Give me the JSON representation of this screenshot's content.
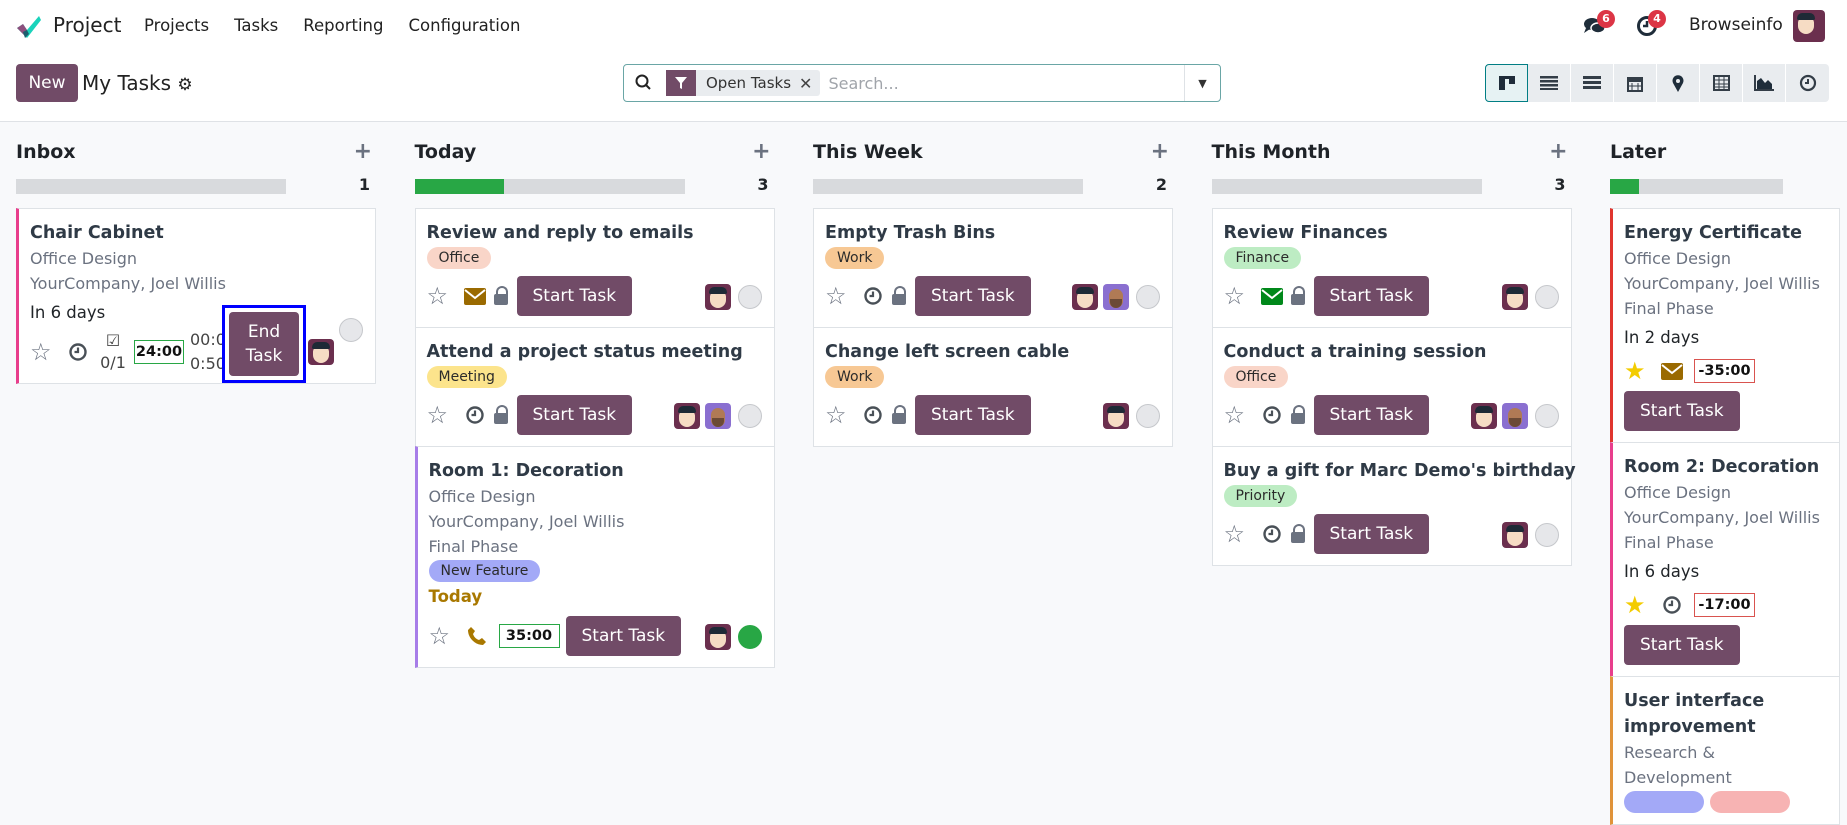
{
  "nav": {
    "app_name": "Project",
    "menu": [
      "Projects",
      "Tasks",
      "Reporting",
      "Configuration"
    ],
    "messages_count": "6",
    "activities_count": "4",
    "user_name": "Browseinfo"
  },
  "control": {
    "new_label": "New",
    "title": "My Tasks",
    "facet_label": "Open Tasks",
    "search_placeholder": "Search...",
    "views": [
      "kanban-icon",
      "list-icon",
      "gantt-icon",
      "calendar-icon",
      "map-pin-icon",
      "pivot-icon",
      "graph-icon",
      "activity-icon"
    ],
    "active_view": "kanban-icon"
  },
  "colors": {
    "brand": "#714b67",
    "progress": "#28a745"
  },
  "columns": [
    {
      "name": "Inbox",
      "count": "1",
      "progress": 0,
      "cards": [
        {
          "title": "Chair Cabinet",
          "lines": [
            "Office Design",
            "YourCompany, Joel Willis"
          ],
          "due": "In 6 days",
          "border": "#e83e8c",
          "special": "inbox",
          "checklist": "0/1",
          "timer": "24:00",
          "time_a": "00:0",
          "time_b": "0:50",
          "btn_a": "End",
          "btn_b": "Task",
          "avatars": [
            "admin"
          ],
          "status": "#e6e7ea"
        }
      ]
    },
    {
      "name": "Today",
      "count": "3",
      "progress": 0.33,
      "cards": [
        {
          "title": "Review and reply to emails",
          "tags": [
            {
              "label": "Office",
              "color": "#f9d5c8"
            }
          ],
          "activity": "envelope",
          "activity_color": "#9a6a00",
          "lock": true,
          "button": "Start Task",
          "avatars": [
            "admin"
          ],
          "status": "#e6e7ea"
        },
        {
          "title": "Attend a project status meeting",
          "tags": [
            {
              "label": "Meeting",
              "color": "#fce48c"
            }
          ],
          "activity": "clock",
          "activity_color": "#495057",
          "lock": true,
          "button": "Start Task",
          "avatars": [
            "admin",
            "marc"
          ],
          "status": "#e6e7ea"
        },
        {
          "title": "Room 1: Decoration",
          "lines": [
            "Office Design",
            "YourCompany, Joel Willis",
            "Final Phase"
          ],
          "tags": [
            {
              "label": "New Feature",
              "color": "#a3a9f7"
            }
          ],
          "due": "Today",
          "due_color": "#a97800",
          "border": "#a77de8",
          "activity": "phone",
          "activity_color": "#a97800",
          "timer": "35:00",
          "timer_color": "#28a745",
          "button": "Start Task",
          "avatars": [
            "admin"
          ],
          "status": "#28a745"
        }
      ]
    },
    {
      "name": "This Week",
      "count": "2",
      "progress": 0,
      "cards": [
        {
          "title": "Empty Trash Bins",
          "tags": [
            {
              "label": "Work",
              "color": "#f7c894"
            }
          ],
          "activity": "clock",
          "activity_color": "#495057",
          "lock": true,
          "button": "Start Task",
          "avatars": [
            "admin",
            "marc"
          ],
          "status": "#e6e7ea"
        },
        {
          "title": "Change left screen cable",
          "tags": [
            {
              "label": "Work",
              "color": "#f7c894"
            }
          ],
          "activity": "clock",
          "activity_color": "#495057",
          "lock": true,
          "button": "Start Task",
          "avatars": [
            "admin"
          ],
          "status": "#e6e7ea"
        }
      ]
    },
    {
      "name": "This Month",
      "count": "3",
      "progress": 0,
      "cards": [
        {
          "title": "Review Finances",
          "tags": [
            {
              "label": "Finance",
              "color": "#bdecc3"
            }
          ],
          "activity": "envelope",
          "activity_color": "#00881a",
          "lock": true,
          "button": "Start Task",
          "avatars": [
            "admin"
          ],
          "status": "#e6e7ea"
        },
        {
          "title": "Conduct a training session",
          "tags": [
            {
              "label": "Office",
              "color": "#f9d5c8"
            }
          ],
          "activity": "clock",
          "activity_color": "#495057",
          "lock": true,
          "button": "Start Task",
          "avatars": [
            "admin",
            "marc"
          ],
          "status": "#e6e7ea"
        },
        {
          "title": "Buy a gift for Marc Demo's birthday",
          "tags": [
            {
              "label": "Priority",
              "color": "#bdecc3"
            }
          ],
          "activity": "clock",
          "activity_color": "#495057",
          "lock": true,
          "button": "Start Task",
          "avatars": [
            "admin"
          ],
          "status": "#e6e7ea"
        }
      ]
    },
    {
      "name": "Later",
      "count": "",
      "progress": 0.17,
      "cards": [
        {
          "title": "Energy Certificate",
          "lines": [
            "Office Design",
            "YourCompany, Joel Willis",
            "Final Phase"
          ],
          "due": "In 2 days",
          "border": "#e0352f",
          "starred": true,
          "activity": "envelope",
          "activity_color": "#9a6a00",
          "timer": "-35:00",
          "timer_color": "#d9534f",
          "button": "Start Task"
        },
        {
          "title": "Room 2: Decoration",
          "lines": [
            "Office Design",
            "YourCompany, Joel Willis",
            "Final Phase"
          ],
          "due": "In 6 days",
          "border": "#e83e8c",
          "starred": true,
          "activity": "clock",
          "activity_color": "#495057",
          "timer": "-17:00",
          "timer_color": "#d9534f",
          "button": "Start Task"
        },
        {
          "title": "User interface improvement",
          "lines": [
            "Research & Development"
          ],
          "border": "#e0933a",
          "tags": [
            {
              "label": "",
              "color": "#a3a9f7"
            },
            {
              "label": "",
              "color": "#f7b3b3"
            }
          ]
        }
      ]
    }
  ]
}
